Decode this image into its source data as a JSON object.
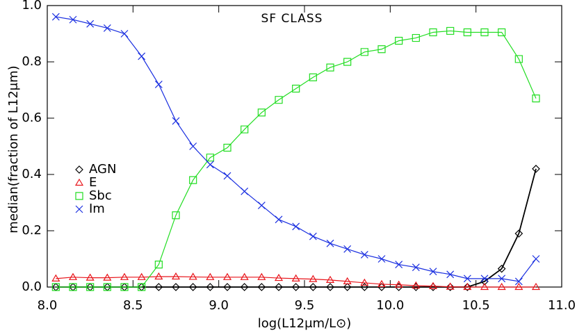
{
  "chart_data": {
    "type": "line",
    "title": "SF CLASS",
    "xlabel": "log(L12μm/L⊙)",
    "ylabel": "median(fraction of L12μm)",
    "xlim": [
      8.0,
      11.0
    ],
    "ylim": [
      0.0,
      1.0
    ],
    "xticks": [
      {
        "value": 8,
        "label": "8.0"
      },
      8.5,
      {
        "value": 9,
        "label": "9.0"
      },
      9.5,
      {
        "value": 10,
        "label": "10.0"
      },
      10.5,
      {
        "value": 11,
        "label": "11.0"
      }
    ],
    "yticks": [
      {
        "value": 0,
        "label": "0.0"
      },
      0.2,
      0.4,
      0.6,
      0.8,
      {
        "value": 1,
        "label": "1.0"
      }
    ],
    "legend": "left",
    "x": [
      8.05,
      8.15,
      8.25,
      8.35,
      8.45,
      8.55,
      8.65,
      8.75,
      8.85,
      8.95,
      9.05,
      9.15,
      9.25,
      9.35,
      9.45,
      9.55,
      9.65,
      9.75,
      9.85,
      9.95,
      10.05,
      10.15,
      10.25,
      10.35,
      10.45,
      10.55,
      10.65,
      10.75,
      10.85
    ],
    "series": [
      {
        "name": "AGN",
        "color": "#000000",
        "marker": "diamond",
        "values": [
          0,
          0,
          0,
          0,
          0,
          0,
          0,
          0,
          0,
          0,
          0,
          0,
          0,
          0,
          0,
          0,
          0,
          0,
          0,
          0,
          0,
          0,
          0,
          0,
          0,
          0.02,
          0.065,
          0.19,
          0.42
        ]
      },
      {
        "name": "E",
        "color": "#e8141a",
        "marker": "triangle",
        "values": [
          0.03,
          0.035,
          0.033,
          0.033,
          0.035,
          0.035,
          0.037,
          0.037,
          0.036,
          0.035,
          0.035,
          0.035,
          0.035,
          0.032,
          0.03,
          0.028,
          0.025,
          0.02,
          0.015,
          0.01,
          0.008,
          0.005,
          0.003,
          0.001,
          0,
          0,
          0,
          0,
          0
        ]
      },
      {
        "name": "Sbc",
        "color": "#22dd22",
        "marker": "square",
        "values": [
          0,
          0,
          0,
          0,
          0,
          0,
          0.08,
          0.255,
          0.38,
          0.46,
          0.495,
          0.56,
          0.62,
          0.665,
          0.705,
          0.745,
          0.78,
          0.8,
          0.835,
          0.845,
          0.875,
          0.885,
          0.905,
          0.91,
          0.905,
          0.905,
          0.905,
          0.81,
          0.67
        ]
      },
      {
        "name": "Im",
        "color": "#1a2fe0",
        "marker": "x",
        "values": [
          0.96,
          0.95,
          0.935,
          0.92,
          0.9,
          0.82,
          0.72,
          0.59,
          0.5,
          0.435,
          0.395,
          0.34,
          0.29,
          0.24,
          0.215,
          0.18,
          0.155,
          0.135,
          0.115,
          0.1,
          0.08,
          0.07,
          0.055,
          0.045,
          0.03,
          0.03,
          0.03,
          0.02,
          0.1
        ]
      }
    ]
  }
}
